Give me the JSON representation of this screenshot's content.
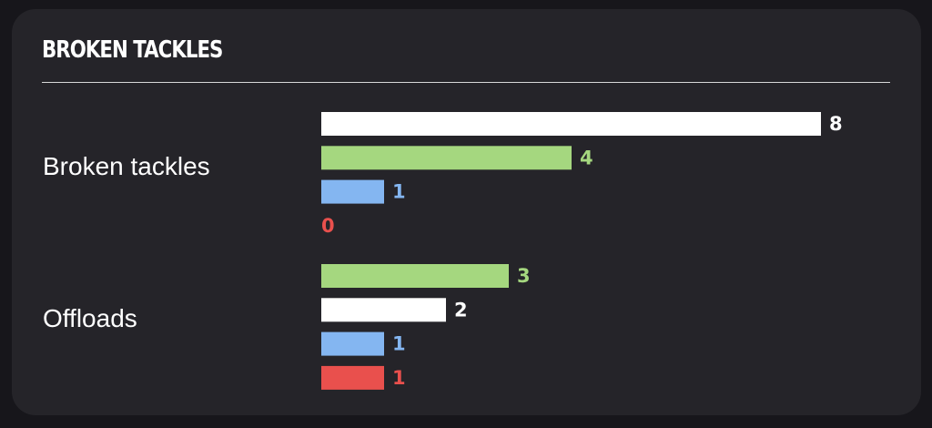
{
  "header": {
    "title": "BROKEN TACKLES"
  },
  "colors": {
    "white": "#ffffff",
    "green": "#a5d77f",
    "blue": "#84b6f1",
    "red": "#e9504d",
    "background": "#17161b",
    "card": "#252429"
  },
  "chart_data": {
    "type": "bar",
    "orientation": "horizontal",
    "xlim": [
      0,
      8
    ],
    "grid": false,
    "groups": [
      {
        "label": "Broken tackles",
        "bars": [
          {
            "value": 8,
            "color": "#ffffff"
          },
          {
            "value": 4,
            "color": "#a5d77f"
          },
          {
            "value": 1,
            "color": "#84b6f1"
          },
          {
            "value": 0,
            "color": "#e9504d"
          }
        ]
      },
      {
        "label": "Offloads",
        "bars": [
          {
            "value": 3,
            "color": "#a5d77f"
          },
          {
            "value": 2,
            "color": "#ffffff"
          },
          {
            "value": 1,
            "color": "#84b6f1"
          },
          {
            "value": 1,
            "color": "#e9504d"
          }
        ]
      }
    ]
  }
}
